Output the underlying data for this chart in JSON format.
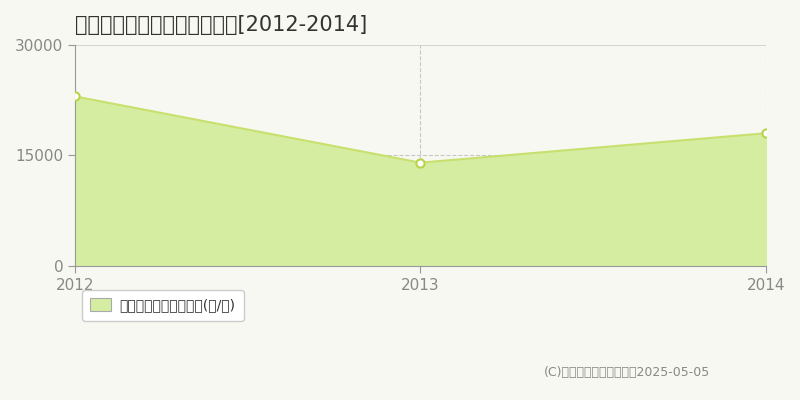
{
  "title": "野々市市清金　農地価格推移[2012-2014]",
  "years": [
    2012,
    2013,
    2014
  ],
  "values": [
    23000,
    14000,
    18000
  ],
  "line_color": "#c8e06e",
  "fill_color": "#d4eda0",
  "marker_color": "#ffffff",
  "marker_edge_color": "#b8d44a",
  "bg_color": "#f8f8f2",
  "grid_color": "#bbbbbb",
  "ylim": [
    0,
    30000
  ],
  "yticks": [
    0,
    15000,
    30000
  ],
  "legend_label": "農地価格　平均坪単価(円/坪)",
  "copyright": "(C)土地価格ドットコム　2025-05-05",
  "title_fontsize": 15,
  "tick_fontsize": 11,
  "legend_fontsize": 10
}
